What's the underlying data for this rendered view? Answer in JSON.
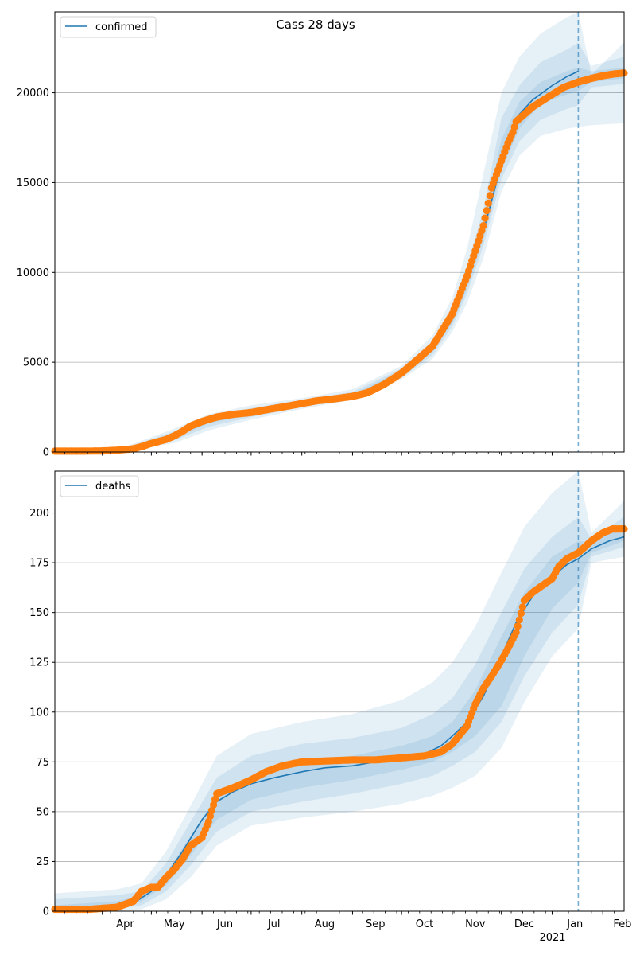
{
  "chart_data": [
    {
      "type": "line",
      "title": "Cass 28 days",
      "xlabel": "",
      "ylabel": "",
      "legend": {
        "entries": [
          "confirmed"
        ],
        "placement": "top-left"
      },
      "grid": {
        "y": true,
        "x": false
      },
      "xlim": [
        "2020-03-03",
        "2021-02-14"
      ],
      "ylim": [
        0,
        24500
      ],
      "yticks": [
        0,
        5000,
        10000,
        15000,
        20000
      ],
      "ytick_labels": [
        "0",
        "5000",
        "10000",
        "15000",
        "20000"
      ],
      "forecast_start": "2021-01-17",
      "colors": {
        "model": "#1f77b4",
        "observed": "#ff7f0e",
        "band": "#1f77b4"
      },
      "series": [
        {
          "name": "confirmed",
          "kind": "model",
          "x": [
            "2020-03-03",
            "2020-03-20",
            "2020-04-01",
            "2020-04-15",
            "2020-04-25",
            "2020-05-05",
            "2020-05-15",
            "2020-05-25",
            "2020-06-05",
            "2020-06-15",
            "2020-06-25",
            "2020-07-05",
            "2020-07-20",
            "2020-08-01",
            "2020-08-15",
            "2020-09-01",
            "2020-09-10",
            "2020-09-20",
            "2020-10-01",
            "2020-10-10",
            "2020-10-20",
            "2020-11-01",
            "2020-11-10",
            "2020-11-20",
            "2020-11-28",
            "2020-12-05",
            "2020-12-12",
            "2020-12-20",
            "2021-01-01",
            "2021-01-10",
            "2021-01-17"
          ],
          "y": [
            50,
            50,
            70,
            150,
            350,
            650,
            900,
            1400,
            1750,
            2000,
            2150,
            2250,
            2450,
            2650,
            2900,
            3100,
            3300,
            3700,
            4400,
            5050,
            5800,
            7500,
            9500,
            12300,
            15000,
            17300,
            18800,
            19600,
            20400,
            20900,
            21200
          ]
        },
        {
          "name": "confirmed",
          "kind": "observed",
          "x": [
            "2020-03-03",
            "2020-03-20",
            "2020-04-01",
            "2020-04-10",
            "2020-04-20",
            "2020-04-25",
            "2020-05-01",
            "2020-05-10",
            "2020-05-15",
            "2020-05-20",
            "2020-05-25",
            "2020-06-01",
            "2020-06-10",
            "2020-06-20",
            "2020-07-01",
            "2020-07-10",
            "2020-07-20",
            "2020-08-01",
            "2020-08-10",
            "2020-08-20",
            "2020-09-01",
            "2020-09-10",
            "2020-09-20",
            "2020-10-01",
            "2020-10-10",
            "2020-10-20",
            "2020-11-01",
            "2020-11-10",
            "2020-11-20",
            "2020-11-25",
            "2020-12-01",
            "2020-12-05",
            "2020-12-08",
            "2020-12-10",
            "2020-12-15",
            "2020-12-20",
            "2020-12-25",
            "2021-01-01",
            "2021-01-08",
            "2021-01-17",
            "2021-01-25",
            "2021-02-01",
            "2021-02-08",
            "2021-02-14"
          ],
          "y": [
            50,
            50,
            60,
            100,
            180,
            300,
            480,
            700,
            900,
            1150,
            1450,
            1700,
            1950,
            2100,
            2200,
            2350,
            2500,
            2700,
            2850,
            2950,
            3100,
            3300,
            3750,
            4400,
            5100,
            5900,
            7700,
            9800,
            12600,
            14700,
            16200,
            17200,
            17800,
            18400,
            18800,
            19200,
            19500,
            19900,
            20300,
            20600,
            20800,
            20950,
            21050,
            21100
          ]
        }
      ],
      "bands": [
        {
          "level": "outer",
          "x": [
            "2020-03-03",
            "2020-04-15",
            "2020-05-15",
            "2020-06-05",
            "2020-07-01",
            "2020-08-01",
            "2020-09-01",
            "2020-10-01",
            "2020-10-20",
            "2020-11-01",
            "2020-11-10",
            "2020-11-20",
            "2020-12-01",
            "2020-12-12",
            "2020-12-25",
            "2021-01-10",
            "2021-01-17",
            "2021-01-25",
            "2021-02-14"
          ],
          "lower": [
            0,
            50,
            500,
            1200,
            1800,
            2400,
            2900,
            4050,
            5200,
            6700,
            8300,
            10800,
            14500,
            16500,
            17600,
            18000,
            18100,
            18200,
            18300
          ],
          "upper": [
            150,
            300,
            1300,
            2100,
            2600,
            3000,
            3500,
            4800,
            6500,
            8600,
            11300,
            15500,
            20000,
            22000,
            23300,
            24200,
            24500,
            21000,
            22800
          ]
        },
        {
          "level": "middle",
          "x": [
            "2020-03-03",
            "2020-04-15",
            "2020-05-15",
            "2020-06-05",
            "2020-07-01",
            "2020-08-01",
            "2020-09-01",
            "2020-10-01",
            "2020-10-20",
            "2020-11-01",
            "2020-11-10",
            "2020-11-20",
            "2020-12-01",
            "2020-12-12",
            "2020-12-25",
            "2021-01-10",
            "2021-01-17",
            "2021-01-25",
            "2021-02-14"
          ],
          "lower": [
            20,
            80,
            650,
            1400,
            1950,
            2500,
            3000,
            4150,
            5400,
            7000,
            8800,
            11500,
            15200,
            17300,
            18500,
            19100,
            19300,
            20300,
            20500
          ],
          "upper": [
            100,
            230,
            1150,
            1950,
            2450,
            2900,
            3350,
            4650,
            6200,
            8100,
            10400,
            13500,
            18600,
            20400,
            21700,
            22400,
            22800,
            21500,
            22000
          ]
        },
        {
          "level": "inner",
          "x": [
            "2020-03-03",
            "2020-04-15",
            "2020-05-15",
            "2020-06-05",
            "2020-07-01",
            "2020-08-01",
            "2020-09-01",
            "2020-10-01",
            "2020-10-20",
            "2020-11-01",
            "2020-11-10",
            "2020-11-20",
            "2020-12-01",
            "2020-12-12",
            "2020-12-25",
            "2021-01-10",
            "2021-01-17",
            "2021-01-25",
            "2021-02-14"
          ],
          "lower": [
            35,
            120,
            780,
            1600,
            2080,
            2580,
            3050,
            4250,
            5600,
            7200,
            9100,
            11900,
            15700,
            18000,
            19400,
            19900,
            20100,
            20600,
            20800
          ],
          "upper": [
            70,
            180,
            1020,
            1850,
            2300,
            2780,
            3200,
            4550,
            6000,
            7800,
            9900,
            12700,
            17400,
            19500,
            20600,
            21200,
            21400,
            21200,
            21400
          ]
        }
      ],
      "xticks_major": [
        {
          "date": "2020-04-01",
          "label": "Apr"
        },
        {
          "date": "2020-05-01",
          "label": "May"
        },
        {
          "date": "2020-06-01",
          "label": "Jun"
        },
        {
          "date": "2020-07-01",
          "label": "Jul"
        },
        {
          "date": "2020-08-01",
          "label": "Aug"
        },
        {
          "date": "2020-09-01",
          "label": "Sep"
        },
        {
          "date": "2020-10-01",
          "label": "Oct"
        },
        {
          "date": "2020-11-01",
          "label": "Nov"
        },
        {
          "date": "2020-12-01",
          "label": "Dec"
        },
        {
          "date": "2021-01-01",
          "label": "Jan"
        },
        {
          "date": "2021-02-01",
          "label": "Feb"
        }
      ],
      "xtick_labels_shown": false
    },
    {
      "type": "line",
      "title": "",
      "xlabel": "",
      "ylabel": "",
      "legend": {
        "entries": [
          "deaths"
        ],
        "placement": "top-left"
      },
      "grid": {
        "y": true,
        "x": false
      },
      "xlim": [
        "2020-03-03",
        "2021-02-14"
      ],
      "ylim": [
        0,
        221
      ],
      "yticks": [
        0,
        25,
        50,
        75,
        100,
        125,
        150,
        175,
        200
      ],
      "ytick_labels": [
        "0",
        "25",
        "50",
        "75",
        "100",
        "125",
        "150",
        "175",
        "200"
      ],
      "forecast_start": "2021-01-17",
      "colors": {
        "model": "#1f77b4",
        "observed": "#ff7f0e",
        "band": "#1f77b4"
      },
      "series": [
        {
          "name": "deaths",
          "kind": "model",
          "x": [
            "2020-03-03",
            "2020-04-10",
            "2020-04-20",
            "2020-05-01",
            "2020-05-10",
            "2020-05-20",
            "2020-06-01",
            "2020-06-10",
            "2020-06-20",
            "2020-07-01",
            "2020-07-15",
            "2020-08-01",
            "2020-08-15",
            "2020-09-01",
            "2020-09-15",
            "2020-10-01",
            "2020-10-15",
            "2020-10-25",
            "2020-11-01",
            "2020-11-10",
            "2020-11-20",
            "2020-12-01",
            "2020-12-10",
            "2020-12-20",
            "2021-01-01",
            "2021-01-10",
            "2021-01-17",
            "2021-01-25",
            "2021-02-05",
            "2021-02-14"
          ],
          "y": [
            1,
            2,
            4,
            10,
            18,
            30,
            46,
            55,
            60,
            64,
            67,
            70,
            72,
            73,
            75,
            77,
            79,
            83,
            88,
            95,
            108,
            128,
            145,
            158,
            168,
            174,
            177,
            182,
            186,
            188
          ]
        },
        {
          "name": "deaths",
          "kind": "observed",
          "x": [
            "2020-03-03",
            "2020-03-25",
            "2020-04-10",
            "2020-04-20",
            "2020-04-25",
            "2020-05-01",
            "2020-05-05",
            "2020-05-10",
            "2020-05-15",
            "2020-05-20",
            "2020-05-25",
            "2020-06-01",
            "2020-06-05",
            "2020-06-10",
            "2020-06-20",
            "2020-07-01",
            "2020-07-10",
            "2020-07-20",
            "2020-08-01",
            "2020-09-01",
            "2020-09-15",
            "2020-10-01",
            "2020-10-15",
            "2020-10-25",
            "2020-11-01",
            "2020-11-10",
            "2020-11-15",
            "2020-11-20",
            "2020-11-25",
            "2020-12-01",
            "2020-12-05",
            "2020-12-10",
            "2020-12-15",
            "2020-12-20",
            "2020-12-25",
            "2021-01-01",
            "2021-01-05",
            "2021-01-10",
            "2021-01-17",
            "2021-01-25",
            "2021-02-01",
            "2021-02-07",
            "2021-02-14"
          ],
          "y": [
            1,
            1,
            2,
            5,
            10,
            12,
            12,
            17,
            21,
            26,
            33,
            37,
            45,
            59,
            62,
            66,
            70,
            73,
            75,
            76,
            76,
            77,
            78,
            80,
            84,
            93,
            104,
            112,
            118,
            126,
            132,
            140,
            156,
            160,
            163,
            167,
            173,
            177,
            180,
            186,
            190,
            192,
            192
          ]
        }
      ],
      "bands": [
        {
          "level": "outer",
          "x": [
            "2020-03-03",
            "2020-04-10",
            "2020-04-25",
            "2020-05-10",
            "2020-05-25",
            "2020-06-10",
            "2020-07-01",
            "2020-08-01",
            "2020-09-01",
            "2020-10-01",
            "2020-10-20",
            "2020-11-01",
            "2020-11-15",
            "2020-12-01",
            "2020-12-15",
            "2021-01-01",
            "2021-01-17",
            "2021-01-25",
            "2021-02-14"
          ],
          "lower": [
            0,
            0,
            1,
            6,
            17,
            33,
            43,
            47,
            50,
            54,
            58,
            62,
            68,
            82,
            105,
            128,
            142,
            175,
            178
          ],
          "upper": [
            9,
            11,
            14,
            30,
            53,
            78,
            89,
            95,
            99,
            106,
            115,
            125,
            143,
            170,
            193,
            210,
            221,
            190,
            206
          ]
        },
        {
          "level": "middle",
          "x": [
            "2020-03-03",
            "2020-04-10",
            "2020-04-25",
            "2020-05-10",
            "2020-05-25",
            "2020-06-10",
            "2020-07-01",
            "2020-08-01",
            "2020-09-01",
            "2020-10-01",
            "2020-10-20",
            "2020-11-01",
            "2020-11-15",
            "2020-12-01",
            "2020-12-15",
            "2021-01-01",
            "2021-01-17",
            "2021-01-25",
            "2021-02-14"
          ],
          "lower": [
            0,
            1,
            3,
            10,
            23,
            40,
            50,
            55,
            59,
            64,
            68,
            73,
            80,
            95,
            118,
            140,
            154,
            178,
            183
          ],
          "upper": [
            6,
            8,
            10,
            24,
            45,
            67,
            78,
            84,
            87,
            92,
            99,
            107,
            124,
            150,
            172,
            188,
            198,
            187,
            198
          ]
        },
        {
          "level": "inner",
          "x": [
            "2020-03-03",
            "2020-04-10",
            "2020-04-25",
            "2020-05-10",
            "2020-05-25",
            "2020-06-10",
            "2020-07-01",
            "2020-08-01",
            "2020-09-01",
            "2020-10-01",
            "2020-10-20",
            "2020-11-01",
            "2020-11-15",
            "2020-12-01",
            "2020-12-15",
            "2021-01-01",
            "2021-01-17",
            "2021-01-25",
            "2021-02-14"
          ],
          "lower": [
            0,
            2,
            5,
            13,
            28,
            46,
            56,
            62,
            66,
            71,
            75,
            80,
            88,
            103,
            128,
            152,
            165,
            180,
            186
          ],
          "upper": [
            3,
            5,
            8,
            19,
            38,
            58,
            68,
            75,
            78,
            83,
            88,
            95,
            111,
            138,
            160,
            178,
            186,
            185,
            194
          ]
        }
      ],
      "xticks_major": [
        {
          "date": "2020-04-01",
          "label": "Apr"
        },
        {
          "date": "2020-05-01",
          "label": "May"
        },
        {
          "date": "2020-06-01",
          "label": "Jun"
        },
        {
          "date": "2020-07-01",
          "label": "Jul"
        },
        {
          "date": "2020-08-01",
          "label": "Aug"
        },
        {
          "date": "2020-09-01",
          "label": "Sep"
        },
        {
          "date": "2020-10-01",
          "label": "Oct"
        },
        {
          "date": "2020-11-01",
          "label": "Nov"
        },
        {
          "date": "2020-12-01",
          "label": "Dec"
        },
        {
          "date": "2021-01-01",
          "label": "Jan"
        },
        {
          "date": "2021-02-01",
          "label": "Feb"
        }
      ],
      "x_year_label": "2021",
      "xtick_labels_shown": true
    }
  ]
}
